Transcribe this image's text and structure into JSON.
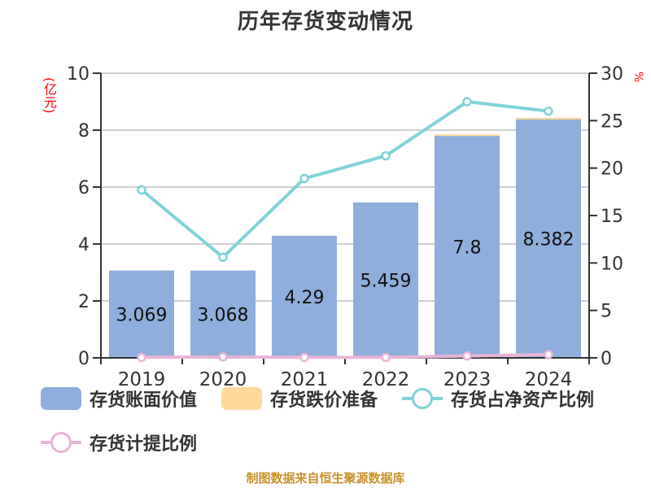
{
  "chart_data": {
    "type": "bar",
    "title": "历年存货变动情况",
    "categories": [
      "2019",
      "2020",
      "2021",
      "2022",
      "2023",
      "2024"
    ],
    "series": [
      {
        "name": "存货账面价值",
        "type": "bar",
        "axis": "left",
        "stack": "inv",
        "color": "#8eaedb",
        "values": [
          3.069,
          3.068,
          4.29,
          5.459,
          7.8,
          8.382
        ],
        "labels": [
          "3.069",
          "3.068",
          "4.29",
          "5.459",
          "7.8",
          "8.382"
        ]
      },
      {
        "name": "存货跌价准备",
        "type": "bar",
        "axis": "left",
        "stack": "inv",
        "color": "#fdd99a",
        "values": [
          0,
          0,
          0,
          0,
          0.05,
          0.05
        ]
      },
      {
        "name": "存货占净资产比例",
        "type": "line",
        "axis": "right",
        "color": "#7fd3d6",
        "values": [
          17.7,
          10.6,
          18.9,
          21.3,
          27.0,
          26.0
        ]
      },
      {
        "name": "存货计提比例",
        "type": "line",
        "axis": "right",
        "color": "#e8b4d8",
        "values": [
          0.05,
          0.1,
          0.05,
          0.05,
          0.2,
          0.35
        ]
      }
    ],
    "ylabel": "(亿元)",
    "y2label": "%",
    "ylim": [
      0,
      10
    ],
    "y2lim": [
      0,
      30
    ],
    "yticks": [
      0,
      2,
      4,
      6,
      8,
      10
    ],
    "y2ticks": [
      0,
      5,
      10,
      15,
      20,
      25,
      30
    ],
    "grid": true,
    "legend_position": "bottom"
  },
  "title": "历年存货变动情况",
  "units": {
    "left": "(亿元)",
    "right": "%"
  },
  "legend": [
    {
      "label": "存货账面价值",
      "kind": "box",
      "color": "#8eaedb"
    },
    {
      "label": "存货跌价准备",
      "kind": "box",
      "color": "#fdd99a"
    },
    {
      "label": "存货占净资产比例",
      "kind": "line",
      "color": "#7fd3d6"
    },
    {
      "label": "存货计提比例",
      "kind": "line",
      "color": "#e8b4d8"
    }
  ],
  "footer": "制图数据来自恒生聚源数据库"
}
